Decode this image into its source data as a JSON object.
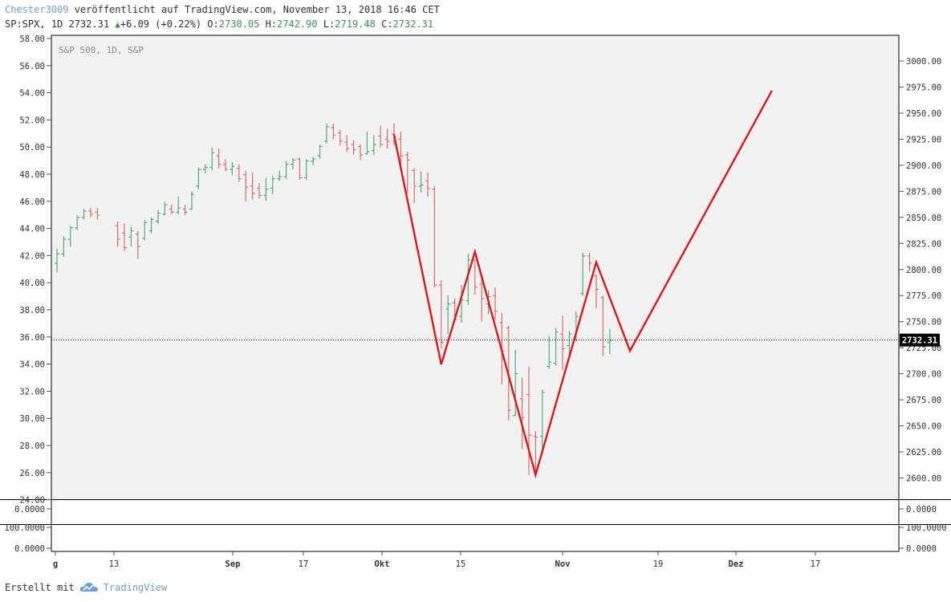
{
  "header": {
    "author": "Chester3009",
    "published_text": " veröffentlicht auf TradingView.com, November 13, 2018 16:46 CET",
    "symbol_line": "SP:SPX, 1D 2732.31",
    "change": "+6.09 (+0.22%)",
    "open_label": "O:",
    "open": "2730.05",
    "high_label": "H:",
    "high": "2742.90",
    "low_label": "L:",
    "low": "2719.48",
    "close_label": "C:",
    "close": "2732.31",
    "up_icon": "triangle-up-icon",
    "up_color": "#2e9e4a"
  },
  "chart_data": {
    "type": "bar",
    "subtype": "ohlc",
    "title": "S&P 500, 1D, S&P",
    "left_axis": {
      "ticks": [
        "58.00",
        "56.00",
        "54.00",
        "52.00",
        "50.00",
        "48.00",
        "46.00",
        "44.00",
        "42.00",
        "40.00",
        "38.00",
        "36.00",
        "34.00",
        "32.00",
        "30.00",
        "28.00",
        "26.00",
        "24.00"
      ]
    },
    "right_axis": {
      "ticks": [
        "3000.00",
        "2975.00",
        "2950.00",
        "2925.00",
        "2900.00",
        "2875.00",
        "2850.00",
        "2825.00",
        "2800.00",
        "2775.00",
        "2750.00",
        "2725.00",
        "2700.00",
        "2675.00",
        "2650.00",
        "2625.00",
        "2600.00"
      ],
      "ylim": [
        2580,
        3025
      ]
    },
    "x_axis": {
      "ticks": [
        "g",
        "13",
        "Sep",
        "17",
        "Okt",
        "15",
        "Nov",
        "19",
        "Dez",
        "17"
      ]
    },
    "last_price": "2732.31",
    "up_color": "#4caf76",
    "down_color": "#e06a6a",
    "pattern_color": "#e01818",
    "grid": false,
    "candles": [
      {
        "i": 0,
        "o": 2806,
        "h": 2820,
        "l": 2797,
        "c": 2815
      },
      {
        "i": 1,
        "o": 2815,
        "h": 2832,
        "l": 2812,
        "c": 2829
      },
      {
        "i": 2,
        "o": 2829,
        "h": 2842,
        "l": 2822,
        "c": 2840
      },
      {
        "i": 3,
        "o": 2840,
        "h": 2852,
        "l": 2838,
        "c": 2850
      },
      {
        "i": 4,
        "o": 2850,
        "h": 2858,
        "l": 2848,
        "c": 2856
      },
      {
        "i": 5,
        "o": 2856,
        "h": 2859,
        "l": 2850,
        "c": 2853
      },
      {
        "i": 6,
        "o": 2855,
        "h": 2859,
        "l": 2848,
        "c": 2852
      },
      {
        "i": 9,
        "o": 2842,
        "h": 2846,
        "l": 2822,
        "c": 2829
      },
      {
        "i": 10,
        "o": 2835,
        "h": 2844,
        "l": 2818,
        "c": 2821
      },
      {
        "i": 11,
        "o": 2831,
        "h": 2841,
        "l": 2822,
        "c": 2837
      },
      {
        "i": 12,
        "o": 2834,
        "h": 2837,
        "l": 2810,
        "c": 2822
      },
      {
        "i": 13,
        "o": 2830,
        "h": 2847,
        "l": 2828,
        "c": 2845
      },
      {
        "i": 14,
        "o": 2837,
        "h": 2850,
        "l": 2835,
        "c": 2848
      },
      {
        "i": 15,
        "o": 2846,
        "h": 2857,
        "l": 2844,
        "c": 2854
      },
      {
        "i": 16,
        "o": 2853,
        "h": 2865,
        "l": 2852,
        "c": 2862
      },
      {
        "i": 17,
        "o": 2858,
        "h": 2862,
        "l": 2853,
        "c": 2855
      },
      {
        "i": 18,
        "o": 2855,
        "h": 2870,
        "l": 2853,
        "c": 2859
      },
      {
        "i": 19,
        "o": 2858,
        "h": 2862,
        "l": 2852,
        "c": 2855
      },
      {
        "i": 20,
        "o": 2858,
        "h": 2875,
        "l": 2857,
        "c": 2872
      },
      {
        "i": 21,
        "o": 2880,
        "h": 2898,
        "l": 2877,
        "c": 2896
      },
      {
        "i": 22,
        "o": 2896,
        "h": 2901,
        "l": 2892,
        "c": 2898
      },
      {
        "i": 23,
        "o": 2898,
        "h": 2917,
        "l": 2895,
        "c": 2912
      },
      {
        "i": 24,
        "o": 2909,
        "h": 2916,
        "l": 2897,
        "c": 2901
      },
      {
        "i": 25,
        "o": 2901,
        "h": 2906,
        "l": 2894,
        "c": 2896
      },
      {
        "i": 26,
        "o": 2896,
        "h": 2903,
        "l": 2891,
        "c": 2899
      },
      {
        "i": 27,
        "o": 2897,
        "h": 2901,
        "l": 2884,
        "c": 2887
      },
      {
        "i": 28,
        "o": 2891,
        "h": 2895,
        "l": 2865,
        "c": 2879
      },
      {
        "i": 29,
        "o": 2880,
        "h": 2893,
        "l": 2867,
        "c": 2873
      },
      {
        "i": 30,
        "o": 2878,
        "h": 2883,
        "l": 2868,
        "c": 2871
      },
      {
        "i": 31,
        "o": 2871,
        "h": 2888,
        "l": 2866,
        "c": 2877
      },
      {
        "i": 32,
        "o": 2878,
        "h": 2890,
        "l": 2872,
        "c": 2887
      },
      {
        "i": 33,
        "o": 2887,
        "h": 2895,
        "l": 2885,
        "c": 2889
      },
      {
        "i": 34,
        "o": 2889,
        "h": 2904,
        "l": 2887,
        "c": 2901
      },
      {
        "i": 35,
        "o": 2901,
        "h": 2907,
        "l": 2896,
        "c": 2905
      },
      {
        "i": 36,
        "o": 2906,
        "h": 2907,
        "l": 2886,
        "c": 2888
      },
      {
        "i": 37,
        "o": 2888,
        "h": 2906,
        "l": 2886,
        "c": 2904
      },
      {
        "i": 38,
        "o": 2904,
        "h": 2908,
        "l": 2900,
        "c": 2906
      },
      {
        "i": 39,
        "o": 2909,
        "h": 2920,
        "l": 2906,
        "c": 2918
      },
      {
        "i": 40,
        "o": 2923,
        "h": 2940,
        "l": 2921,
        "c": 2937
      },
      {
        "i": 41,
        "o": 2936,
        "h": 2940,
        "l": 2925,
        "c": 2929
      },
      {
        "i": 42,
        "o": 2931,
        "h": 2934,
        "l": 2919,
        "c": 2923
      },
      {
        "i": 43,
        "o": 2922,
        "h": 2929,
        "l": 2913,
        "c": 2916
      },
      {
        "i": 44,
        "o": 2920,
        "h": 2924,
        "l": 2910,
        "c": 2915
      },
      {
        "i": 45,
        "o": 2918,
        "h": 2920,
        "l": 2905,
        "c": 2910
      },
      {
        "i": 46,
        "o": 2911,
        "h": 2932,
        "l": 2910,
        "c": 2913
      },
      {
        "i": 47,
        "o": 2914,
        "h": 2929,
        "l": 2910,
        "c": 2920
      },
      {
        "i": 48,
        "o": 2928,
        "h": 2938,
        "l": 2917,
        "c": 2920
      },
      {
        "i": 49,
        "o": 2925,
        "h": 2935,
        "l": 2916,
        "c": 2923
      },
      {
        "i": 50,
        "o": 2930,
        "h": 2940,
        "l": 2919,
        "c": 2927
      },
      {
        "i": 51,
        "o": 2925,
        "h": 2932,
        "l": 2900,
        "c": 2909
      },
      {
        "i": 52,
        "o": 2910,
        "h": 2913,
        "l": 2873,
        "c": 2905
      },
      {
        "i": 53,
        "o": 2895,
        "h": 2897,
        "l": 2864,
        "c": 2880
      },
      {
        "i": 54,
        "o": 2880,
        "h": 2894,
        "l": 2874,
        "c": 2881
      },
      {
        "i": 55,
        "o": 2885,
        "h": 2893,
        "l": 2870,
        "c": 2878
      },
      {
        "i": 56,
        "o": 2877,
        "h": 2880,
        "l": 2783,
        "c": 2785
      },
      {
        "i": 57,
        "o": 2785,
        "h": 2790,
        "l": 2724,
        "c": 2730
      },
      {
        "i": 58,
        "o": 2762,
        "h": 2775,
        "l": 2738,
        "c": 2767
      },
      {
        "i": 59,
        "o": 2768,
        "h": 2772,
        "l": 2749,
        "c": 2752
      },
      {
        "i": 60,
        "o": 2755,
        "h": 2785,
        "l": 2749,
        "c": 2771
      },
      {
        "i": 61,
        "o": 2770,
        "h": 2815,
        "l": 2766,
        "c": 2809
      },
      {
        "i": 62,
        "o": 2809,
        "h": 2810,
        "l": 2776,
        "c": 2783
      },
      {
        "i": 63,
        "o": 2786,
        "h": 2796,
        "l": 2750,
        "c": 2772
      },
      {
        "i": 64,
        "o": 2767,
        "h": 2780,
        "l": 2757,
        "c": 2774
      },
      {
        "i": 65,
        "o": 2775,
        "h": 2783,
        "l": 2752,
        "c": 2760
      },
      {
        "i": 66,
        "o": 2749,
        "h": 2758,
        "l": 2690,
        "c": 2722
      },
      {
        "i": 67,
        "o": 2744,
        "h": 2746,
        "l": 2655,
        "c": 2665
      },
      {
        "i": 68,
        "o": 2660,
        "h": 2723,
        "l": 2660,
        "c": 2700
      },
      {
        "i": 69,
        "o": 2676,
        "h": 2696,
        "l": 2628,
        "c": 2658
      },
      {
        "i": 70,
        "o": 2680,
        "h": 2707,
        "l": 2603,
        "c": 2641
      },
      {
        "i": 71,
        "o": 2640,
        "h": 2645,
        "l": 2604,
        "c": 2639
      },
      {
        "i": 72,
        "o": 2640,
        "h": 2685,
        "l": 2625,
        "c": 2682
      },
      {
        "i": 73,
        "o": 2707,
        "h": 2736,
        "l": 2705,
        "c": 2711
      },
      {
        "i": 74,
        "o": 2710,
        "h": 2744,
        "l": 2708,
        "c": 2740
      },
      {
        "i": 75,
        "o": 2738,
        "h": 2756,
        "l": 2703,
        "c": 2724
      },
      {
        "i": 76,
        "o": 2727,
        "h": 2741,
        "l": 2714,
        "c": 2738
      },
      {
        "i": 77,
        "o": 2733,
        "h": 2760,
        "l": 2731,
        "c": 2755
      },
      {
        "i": 78,
        "o": 2777,
        "h": 2816,
        "l": 2775,
        "c": 2813
      },
      {
        "i": 79,
        "o": 2813,
        "h": 2816,
        "l": 2798,
        "c": 2806
      },
      {
        "i": 80,
        "o": 2794,
        "h": 2795,
        "l": 2763,
        "c": 2781
      },
      {
        "i": 81,
        "o": 2773,
        "h": 2775,
        "l": 2717,
        "c": 2726
      },
      {
        "i": 82,
        "o": 2730,
        "h": 2743,
        "l": 2719,
        "c": 2732
      }
    ],
    "pattern_points": [
      {
        "i": 50,
        "p": 2929
      },
      {
        "i": 57,
        "p": 2709
      },
      {
        "i": 62,
        "p": 2817
      },
      {
        "i": 71,
        "p": 2603
      },
      {
        "i": 80,
        "p": 2807
      },
      {
        "i": 85,
        "p": 2722
      },
      {
        "i": 106,
        "p": 2971
      }
    ],
    "lower_panes": [
      {
        "ticks": [
          "0.0000"
        ]
      },
      {
        "ticks": [
          "100.0000",
          "0.0000"
        ]
      }
    ]
  },
  "footer": {
    "created_with": "Erstellt mit",
    "brand": "TradingView",
    "brand_icon": "tradingview-cloud-icon"
  }
}
